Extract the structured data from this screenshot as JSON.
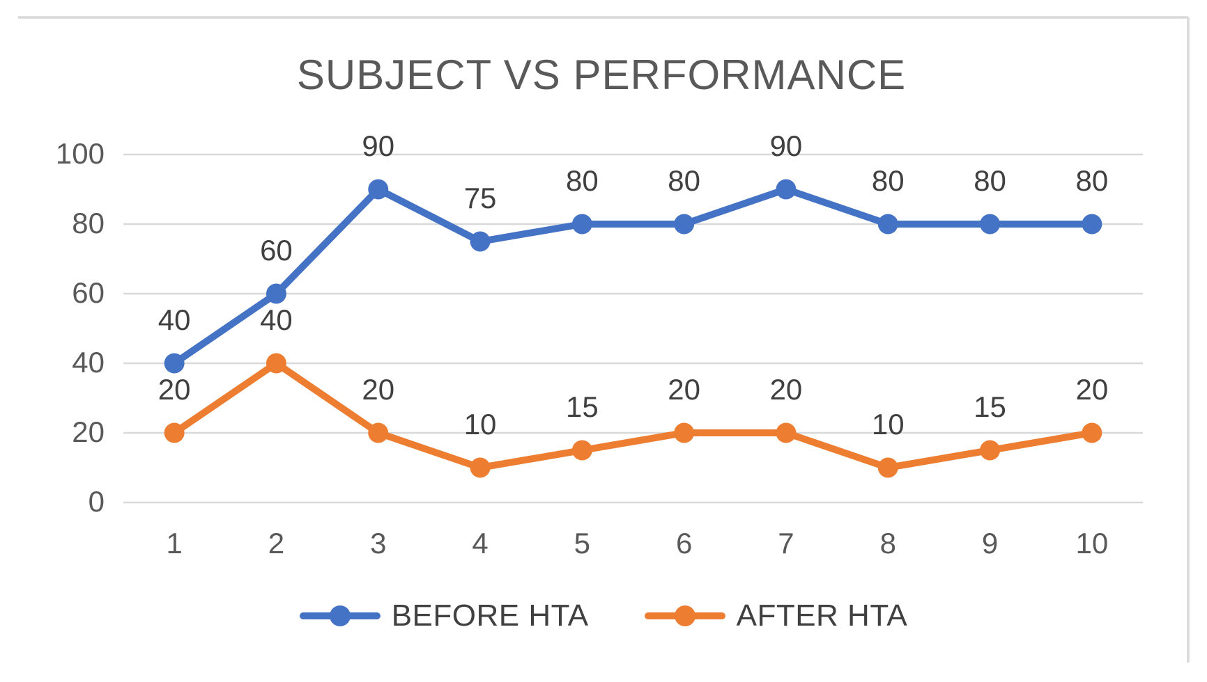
{
  "chart_data": {
    "type": "line",
    "title": "SUBJECT VS PERFORMANCE",
    "xlabel": "",
    "ylabel": "",
    "categories": [
      "1",
      "2",
      "3",
      "4",
      "5",
      "6",
      "7",
      "8",
      "9",
      "10"
    ],
    "series": [
      {
        "name": "BEFORE HTA",
        "color": "#4472C4",
        "values": [
          40,
          60,
          90,
          75,
          80,
          80,
          90,
          80,
          80,
          80
        ]
      },
      {
        "name": "AFTER HTA",
        "color": "#ED7D31",
        "values": [
          20,
          40,
          20,
          10,
          15,
          20,
          20,
          10,
          15,
          20
        ]
      }
    ],
    "y_ticks": [
      0,
      20,
      40,
      60,
      80,
      100
    ],
    "ylim": [
      0,
      100
    ],
    "grid": true,
    "data_labels": true,
    "legend_position": "bottom",
    "colors": {
      "gridline": "#D9D9D9",
      "frame_border": "#D9D9D9",
      "title_text": "#595959",
      "axis_text": "#595959",
      "data_label_text": "#404040",
      "background": "#FFFFFF"
    }
  }
}
